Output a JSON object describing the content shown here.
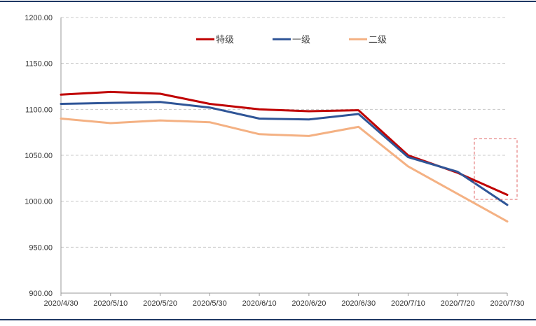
{
  "chart_data": {
    "type": "line",
    "title": "",
    "xlabel": "",
    "ylabel": "",
    "ylim": [
      900,
      1200
    ],
    "y_ticks": [
      "900.00",
      "950.00",
      "1000.00",
      "1050.00",
      "1100.00",
      "1150.00",
      "1200.00"
    ],
    "categories": [
      "2020/4/30",
      "2020/5/10",
      "2020/5/20",
      "2020/5/30",
      "2020/6/10",
      "2020/6/20",
      "2020/6/30",
      "2020/7/10",
      "2020/7/20",
      "2020/7/30"
    ],
    "grid": true,
    "legend_position": "top-center",
    "series": [
      {
        "name": "特级",
        "color": "#c00000",
        "values": [
          1116,
          1119,
          1117,
          1106,
          1100,
          1098,
          1099,
          1050,
          1031,
          1007
        ]
      },
      {
        "name": "一级",
        "color": "#2f5597",
        "values": [
          1106,
          1107,
          1108,
          1102,
          1090,
          1089,
          1095,
          1048,
          1032,
          996
        ]
      },
      {
        "name": "二级",
        "color": "#f4b183",
        "values": [
          1090,
          1085,
          1088,
          1086,
          1073,
          1071,
          1081,
          1038,
          1008,
          978
        ]
      }
    ],
    "highlight_color": "#e06666"
  }
}
